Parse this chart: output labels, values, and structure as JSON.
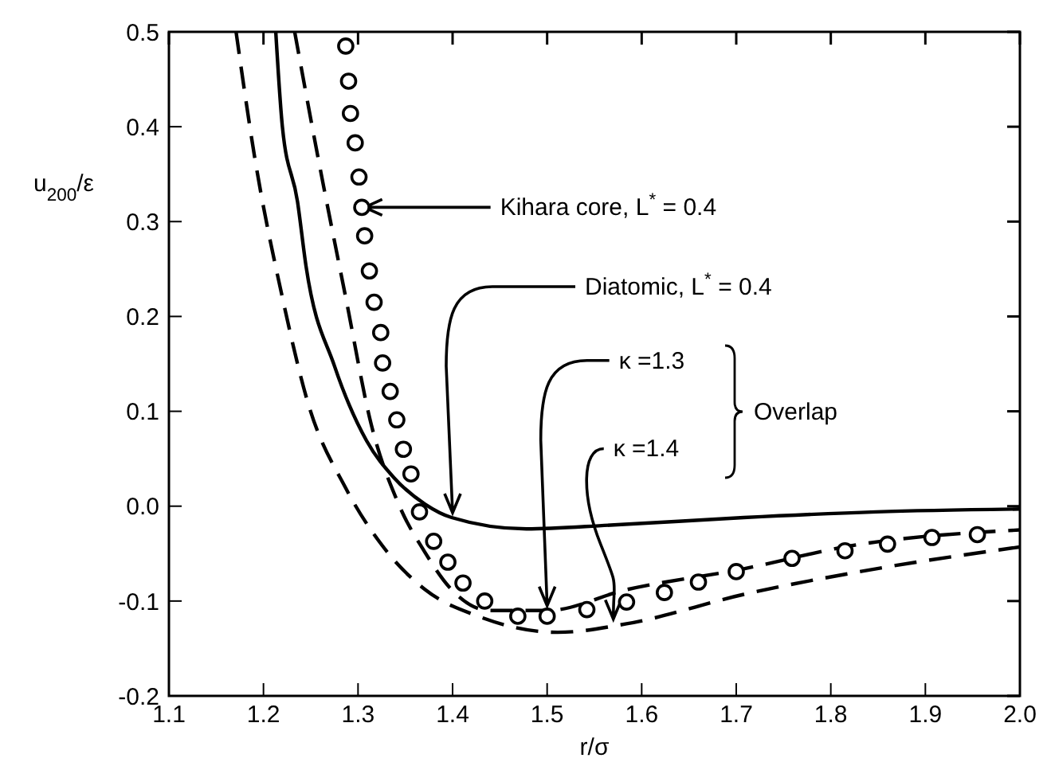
{
  "chart_data": {
    "type": "line",
    "xlabel": "r/σ",
    "ylabel": "u$_{200}$/ε",
    "xlim": [
      1.1,
      2.0
    ],
    "ylim": [
      -0.2,
      0.5
    ],
    "xticks": [
      1.1,
      1.2,
      1.3,
      1.4,
      1.5,
      1.6,
      1.7,
      1.8,
      1.9,
      {
        "value": 2.0,
        "label": "2.0"
      }
    ],
    "yticks": [
      -0.2,
      -0.1,
      {
        "value": 0,
        "label": "0.0"
      },
      0.1,
      0.2,
      0.3,
      0.4,
      0.5
    ],
    "grid": false,
    "series": [
      {
        "type": "scatter",
        "marker": "circle",
        "color": "#000000",
        "x": [
          1.287,
          1.29,
          1.292,
          1.297,
          1.301,
          1.304,
          1.307,
          1.312,
          1.317,
          1.324,
          1.326,
          1.334,
          1.341,
          1.348,
          1.356,
          1.365,
          1.38,
          1.395,
          1.411,
          1.434,
          1.469,
          1.5,
          1.542,
          1.584,
          1.624,
          1.66,
          1.7,
          1.759,
          1.815,
          1.86,
          1.907,
          1.955
        ],
        "values": [
          0.485,
          0.448,
          0.414,
          0.383,
          0.347,
          0.315,
          0.285,
          0.248,
          0.215,
          0.183,
          0.151,
          0.121,
          0.091,
          0.06,
          0.034,
          -0.006,
          -0.037,
          -0.059,
          -0.081,
          -0.1,
          -0.116,
          -0.116,
          -0.109,
          -0.101,
          -0.091,
          -0.08,
          -0.069,
          -0.055,
          -0.047,
          -0.04,
          -0.033,
          -0.03
        ]
      },
      {
        "type": "line",
        "line_style": "solid",
        "marker": "none",
        "color": "#000000",
        "x": [
          1.213,
          1.22,
          1.236,
          1.245,
          1.275,
          1.309,
          1.338,
          1.371,
          1.399,
          1.478,
          1.567,
          1.708,
          1.848,
          2.0
        ],
        "values": [
          0.5,
          0.4,
          0.321,
          0.253,
          0.148,
          0.069,
          0.03,
          0.002,
          -0.012,
          -0.024,
          -0.02,
          -0.012,
          -0.006,
          -0.003
        ]
      },
      {
        "type": "line",
        "line_style": "dashed",
        "marker": "none",
        "color": "#000000",
        "x": [
          1.233,
          1.258,
          1.287,
          1.314,
          1.343,
          1.371,
          1.399,
          1.439,
          1.5,
          1.584,
          1.708,
          1.82,
          2.0
        ],
        "values": [
          0.5,
          0.366,
          0.22,
          0.086,
          0.002,
          -0.049,
          -0.088,
          -0.11,
          -0.11,
          -0.088,
          -0.066,
          -0.042,
          -0.025
        ]
      },
      {
        "type": "line",
        "line_style": "dashed",
        "marker": "none",
        "color": "#000000",
        "x": [
          1.171,
          1.191,
          1.22,
          1.247,
          1.287,
          1.326,
          1.371,
          1.427,
          1.511,
          1.584,
          1.708,
          1.848,
          2.0
        ],
        "values": [
          0.5,
          0.366,
          0.22,
          0.109,
          0.019,
          -0.042,
          -0.088,
          -0.116,
          -0.133,
          -0.124,
          -0.093,
          -0.066,
          -0.043
        ]
      }
    ],
    "annotations": [
      {
        "text": "Kihara core, L$^{*}$ = 0.4",
        "x": 1.307,
        "y": 0.315
      },
      {
        "text": "Diatomic, L$^{*}$ = 0.4",
        "x": 1.4,
        "y": -0.012
      },
      {
        "text": "κ =1.3",
        "x": 1.5,
        "y": -0.11
      },
      {
        "text": "κ =1.4",
        "x": 1.57,
        "y": -0.124
      },
      "Overlap"
    ]
  }
}
